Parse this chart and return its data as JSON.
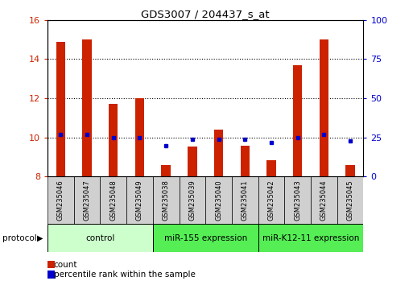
{
  "title": "GDS3007 / 204437_s_at",
  "samples": [
    "GSM235046",
    "GSM235047",
    "GSM235048",
    "GSM235049",
    "GSM235038",
    "GSM235039",
    "GSM235040",
    "GSM235041",
    "GSM235042",
    "GSM235043",
    "GSM235044",
    "GSM235045"
  ],
  "count_values": [
    14.9,
    15.0,
    11.7,
    12.0,
    8.6,
    9.55,
    10.4,
    9.6,
    8.85,
    13.7,
    15.0,
    8.6
  ],
  "percentile_values": [
    27,
    27,
    25,
    25,
    20,
    24,
    24,
    24,
    22,
    25,
    27,
    23
  ],
  "count_base": 8.0,
  "ylim_left": [
    8,
    16
  ],
  "ylim_right": [
    0,
    100
  ],
  "yticks_left": [
    8,
    10,
    12,
    14,
    16
  ],
  "yticks_right": [
    0,
    25,
    50,
    75,
    100
  ],
  "bar_color": "#cc2200",
  "dot_color": "#0000cc",
  "groups": [
    {
      "label": "control",
      "start": 0,
      "end": 4,
      "color": "#ccffcc"
    },
    {
      "label": "miR-155 expression",
      "start": 4,
      "end": 8,
      "color": "#55ee55"
    },
    {
      "label": "miR-K12-11 expression",
      "start": 8,
      "end": 12,
      "color": "#55ee55"
    }
  ],
  "protocol_label": "protocol",
  "legend_count": "count",
  "legend_percentile": "percentile rank within the sample",
  "bar_width": 0.35
}
